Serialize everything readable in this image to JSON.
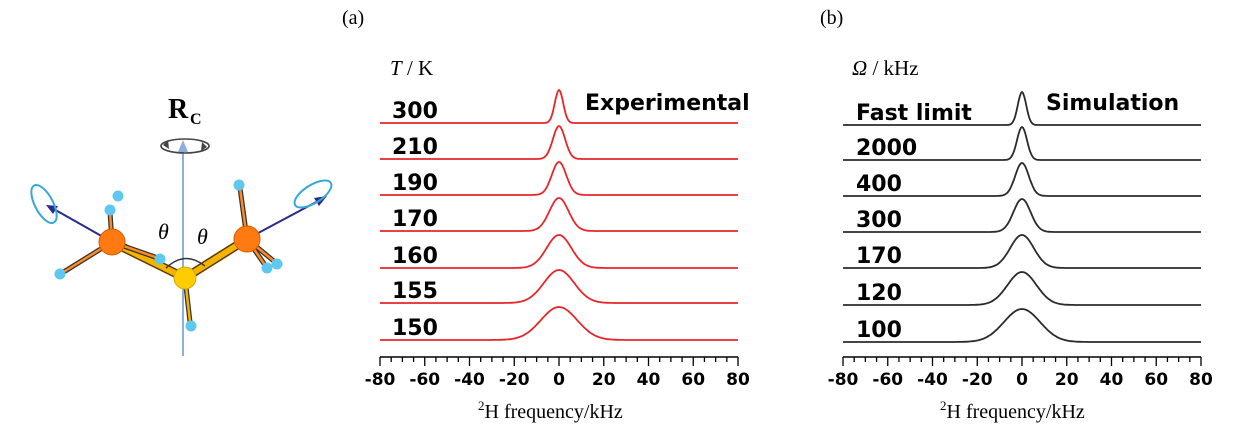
{
  "panel_labels": [
    "(a)",
    "(b)"
  ],
  "molecule": {
    "axis_label_main": "R",
    "axis_label_sub": "C",
    "angle_label": "θ",
    "colors": {
      "carbon": "#ff7a10",
      "sulfur": "#ffcc00",
      "hydrogen": "#5ec8f0",
      "axis": "#8faedc",
      "vector": "#2a2a8c",
      "rotation": "#36a8d8"
    }
  },
  "chart_data": [
    {
      "type": "line",
      "panel": "(a)",
      "param_symbol": "T",
      "param_unit": " / K",
      "title": "Experimental",
      "xlabel_sup": "2",
      "xlabel": "H frequency/kHz",
      "xlim": [
        -80,
        80
      ],
      "xticks": [
        "-80",
        "-60",
        "-40",
        "-20",
        "0",
        "20",
        "40",
        "60",
        "80"
      ],
      "color": "#e8262a",
      "series": [
        {
          "name": "300",
          "center": 0,
          "hwhm": 2.2
        },
        {
          "name": "210",
          "center": 0,
          "hwhm": 3.2
        },
        {
          "name": "190",
          "center": 0,
          "hwhm": 3.8
        },
        {
          "name": "170",
          "center": 0,
          "hwhm": 5.0
        },
        {
          "name": "160",
          "center": 0,
          "hwhm": 6.5
        },
        {
          "name": "155",
          "center": 0,
          "hwhm": 8.0
        },
        {
          "name": "150",
          "center": 0,
          "hwhm": 9.5
        }
      ]
    },
    {
      "type": "line",
      "panel": "(b)",
      "param_symbol": "Ω",
      "param_unit": " / kHz",
      "title": "Simulation",
      "xlabel_sup": "2",
      "xlabel": "H frequency/kHz",
      "xlim": [
        -80,
        80
      ],
      "xticks": [
        "-80",
        "-60",
        "-40",
        "-20",
        "0",
        "20",
        "40",
        "60",
        "80"
      ],
      "color": "#2b2b2b",
      "series": [
        {
          "name": "Fast limit",
          "center": 0,
          "hwhm": 2.2
        },
        {
          "name": "2000",
          "center": 0,
          "hwhm": 2.6
        },
        {
          "name": "400",
          "center": 0,
          "hwhm": 3.6
        },
        {
          "name": "300",
          "center": 0,
          "hwhm": 4.5
        },
        {
          "name": "170",
          "center": 0,
          "hwhm": 6.2
        },
        {
          "name": "120",
          "center": 0,
          "hwhm": 7.6
        },
        {
          "name": "100",
          "center": 0,
          "hwhm": 9.5
        }
      ]
    }
  ]
}
